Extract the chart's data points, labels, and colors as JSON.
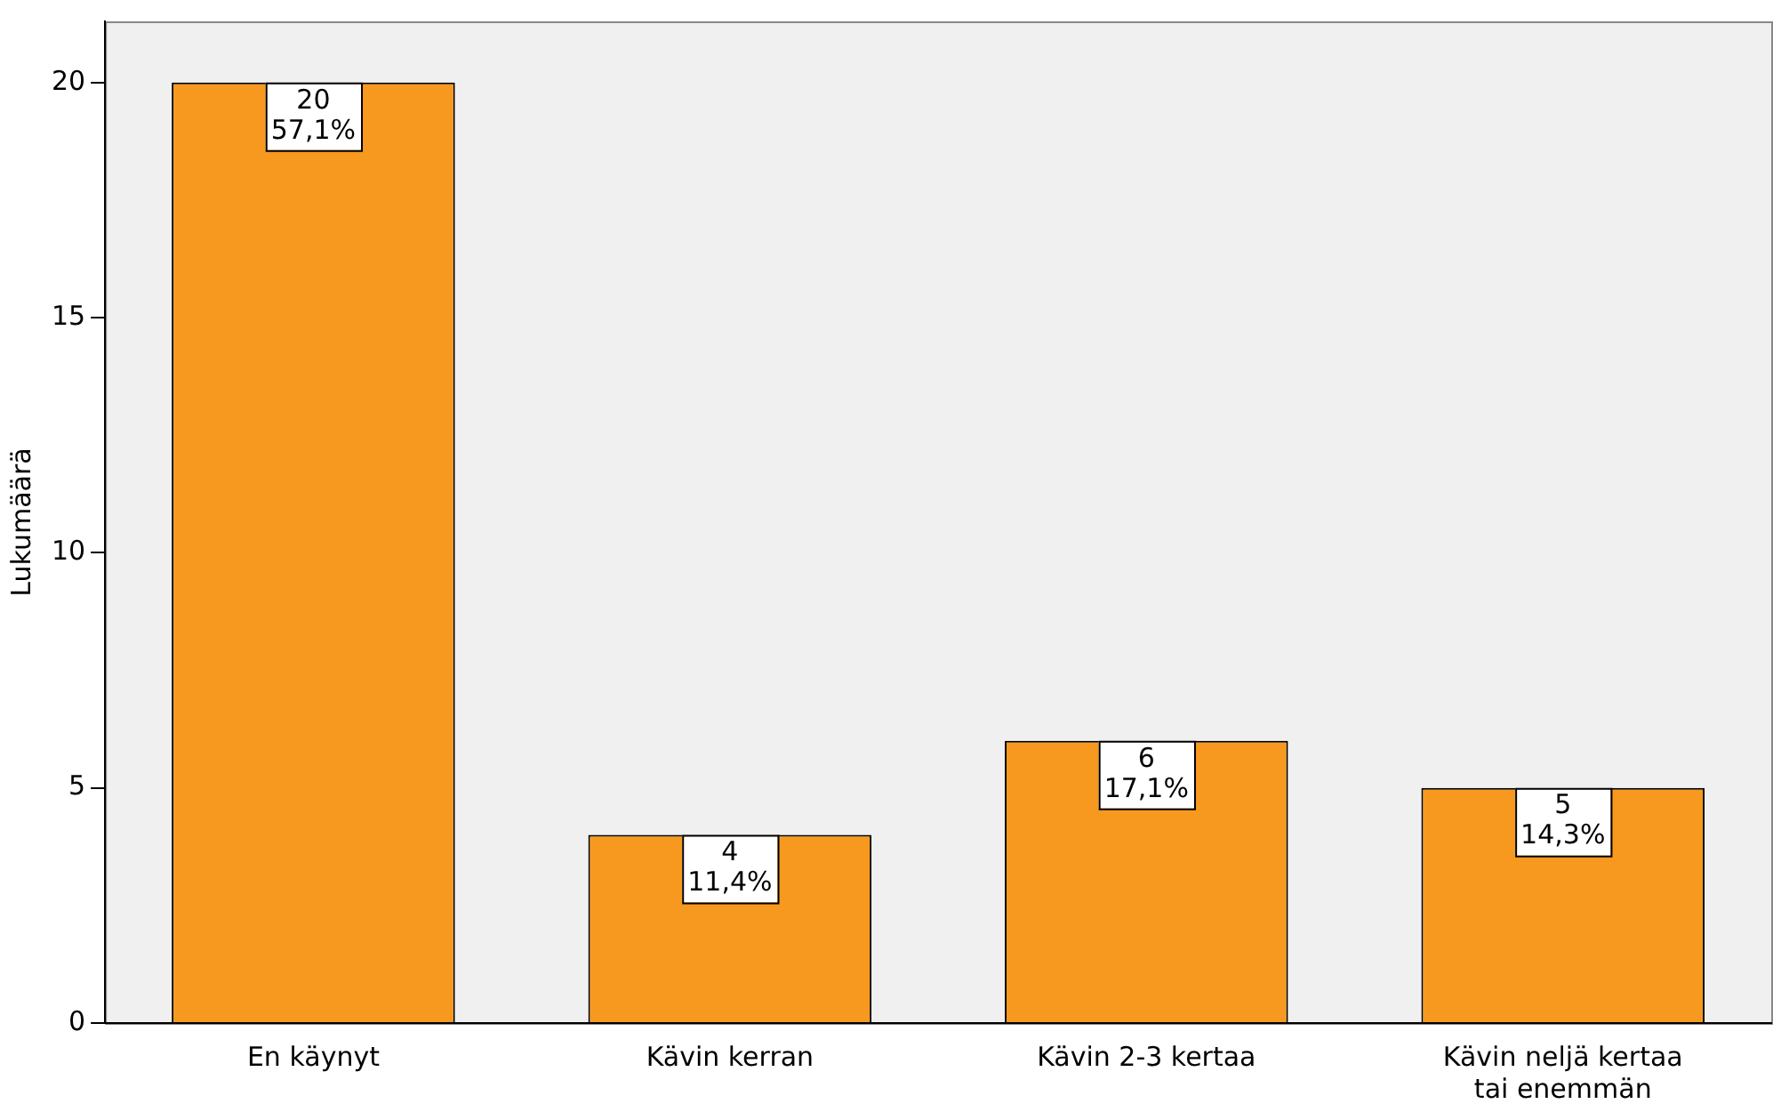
{
  "chart_data": {
    "type": "bar",
    "ylabel": "Lukumäärä",
    "categories": [
      "En käynyt",
      "Kävin kerran",
      "Kävin 2-3 kertaa",
      "Kävin neljä kertaa tai enemmän"
    ],
    "values": [
      20,
      4,
      6,
      5
    ],
    "value_labels": [
      "20\n57,1%",
      "4\n11,4%",
      "6\n17,1%",
      "5\n14,3%"
    ],
    "color": "#f7991f",
    "ylim": [
      0,
      21.3
    ],
    "yticks": [
      0,
      5,
      10,
      15,
      20
    ],
    "grid": false,
    "legend": false
  }
}
